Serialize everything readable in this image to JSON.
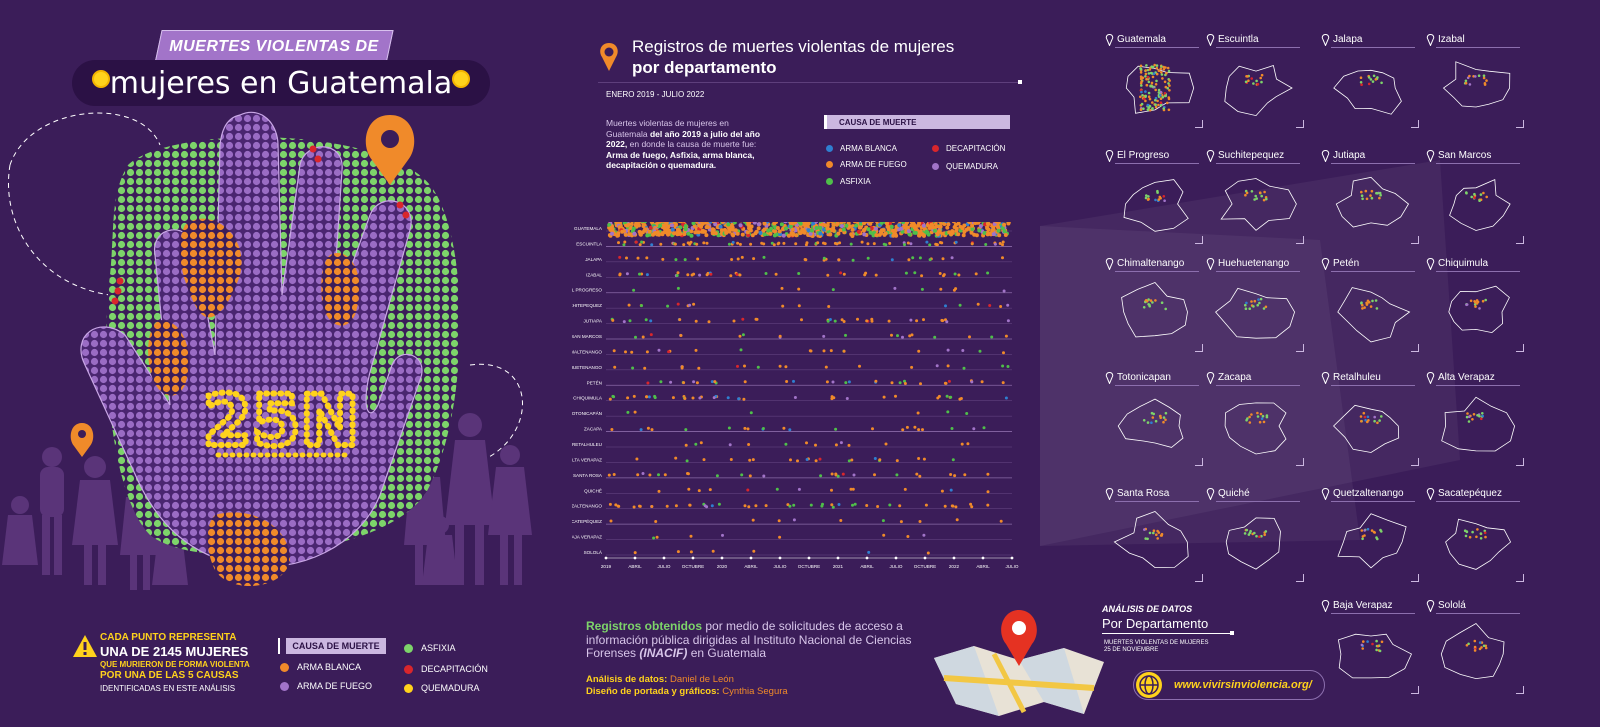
{
  "header": {
    "tag": "MUERTES VIOLENTAS DE",
    "title": "mujeres en Guatemala"
  },
  "hand": {
    "label": "25N"
  },
  "legend_left": {
    "line1": "CADA PUNTO REPRESENTA",
    "line2": "UNA DE 2145 MUJERES",
    "line3": "QUE MURIERON DE FORMA VIOLENTA",
    "line4": "POR UNA DE LAS 5 CAUSAS",
    "line5": "IDENTIFICADAS EN ESTE ANÁLISIS",
    "heading": "CAUSA DE MUERTE",
    "items": [
      {
        "label": "ARMA BLANCA",
        "color": "#f08a2a"
      },
      {
        "label": "ARMA DE FUEGO",
        "color": "#a274c9"
      },
      {
        "label": "ASFIXIA",
        "color": "#7dd46a"
      },
      {
        "label": "DECAPITACIÓN",
        "color": "#d9262c"
      },
      {
        "label": "QUEMADURA",
        "color": "#ffd21c"
      }
    ]
  },
  "middle": {
    "title_line1": "Registros de muertes violentas de mujeres",
    "title_line2": "por departamento",
    "date_range": "ENERO 2019 - JULIO 2022",
    "desc_plain1": "Muertes violentas de mujeres en Guatemala ",
    "desc_bold1": "del año 2019 a julio del año 2022,",
    "desc_plain2": " en donde la causa de muerte fue: ",
    "desc_bold2": "Arma de fuego, Asfixia, arma blanca, decapitación o quemadura.",
    "cause_heading": "CAUSA DE MUERTE",
    "cause_items": [
      {
        "label": "ARMA BLANCA",
        "color": "#2f7fd0"
      },
      {
        "label": "ARMA DE FUEGO",
        "color": "#f08a2a"
      },
      {
        "label": "ASFIXIA",
        "color": "#4fbf4a"
      },
      {
        "label": "DECAPITACIÓN",
        "color": "#d9262c"
      },
      {
        "label": "QUEMADURA",
        "color": "#a274c9"
      }
    ],
    "records_bold": "Registros obtenidos",
    "records_text1": " por medio de solicitudes de acceso a información pública dirigidas al Instituto Nacional de Ciencias Forenses ",
    "records_italic": "(INACIF)",
    "records_text2": " en Guatemala",
    "credit1_label": "Análisis de datos:",
    "credit1_name": " Daniel de León",
    "credit2_label": "Diseño de portada y gráficos:",
    "credit2_name": " Cynthia Segura"
  },
  "chart_data": {
    "type": "scatter",
    "title": "Registros de muertes violentas de mujeres por departamento",
    "x_axis_ticks": [
      "2019",
      "ABRIL",
      "JULIO",
      "OCTUBRE",
      "2020",
      "ABRIL",
      "JULIO",
      "OCTUBRE",
      "2021",
      "ABRIL",
      "JULIO",
      "OCTUBRE",
      "2022",
      "ABRIL",
      "JULIO"
    ],
    "rows": [
      "GUATEMALA",
      "ESCUINTLA",
      "JALAPA",
      "IZABAL",
      "EL PROGRESO",
      "SUCHITEPEQUEZ",
      "JUTIAPA",
      "SAN MARCOS",
      "CHIMALTENANGO",
      "HUEHUETENANGO",
      "PETÉN",
      "CHIQUIMULA",
      "TOTONICAPÁN",
      "ZACAPA",
      "RETALHULEU",
      "ALTA VERAPAZ",
      "SANTA ROSA",
      "QUICHÉ",
      "QUETZALTENANGO",
      "SACATEPÉQUEZ",
      "BAJA VERAPAZ",
      "SOLOLÁ"
    ],
    "relative_density": [
      1.0,
      0.55,
      0.22,
      0.3,
      0.08,
      0.12,
      0.25,
      0.14,
      0.14,
      0.14,
      0.22,
      0.28,
      0.04,
      0.16,
      0.1,
      0.16,
      0.2,
      0.1,
      0.32,
      0.08,
      0.06,
      0.05
    ],
    "series_colors": {
      "ARMA BLANCA": "#2f7fd0",
      "ARMA DE FUEGO": "#f08a2a",
      "ASFIXIA": "#4fbf4a",
      "DECAPITACIÓN": "#d9262c",
      "QUEMADURA": "#a274c9"
    },
    "grid": false
  },
  "departments": [
    {
      "name": "Guatemala"
    },
    {
      "name": "Escuintla"
    },
    {
      "name": "Jalapa"
    },
    {
      "name": "Izabal"
    },
    {
      "name": "El Progreso"
    },
    {
      "name": "Suchitepequez"
    },
    {
      "name": "Jutiapa"
    },
    {
      "name": "San Marcos"
    },
    {
      "name": "Chimaltenango"
    },
    {
      "name": "Huehuetenango"
    },
    {
      "name": "Petén"
    },
    {
      "name": "Chiquimula"
    },
    {
      "name": "Totonicapan"
    },
    {
      "name": "Zacapa"
    },
    {
      "name": "Retalhuleu"
    },
    {
      "name": "Alta Verapaz"
    },
    {
      "name": "Santa Rosa"
    },
    {
      "name": "Quiché"
    },
    {
      "name": "Quetzaltenango"
    },
    {
      "name": "Sacatepéquez"
    },
    {
      "name": "Baja Verapaz"
    },
    {
      "name": "Sololá"
    }
  ],
  "analysis": {
    "line1": "ANÁLISIS DE DATOS",
    "line2": "Por Departamento",
    "line3a": "MUERTES VIOLENTAS DE MUJERES",
    "line3b": "25 DE NOVIEMBRE"
  },
  "website": {
    "url": "www.vivirsinviolencia.org/"
  }
}
